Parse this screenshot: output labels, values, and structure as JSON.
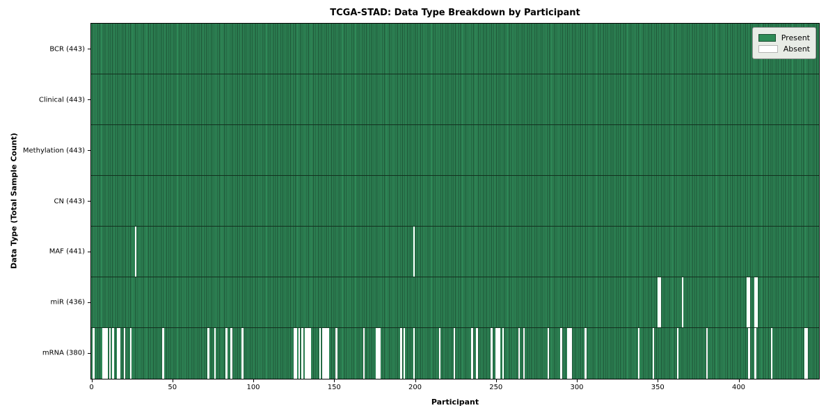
{
  "title": "TCGA-STAD: Data Type Breakdown by Participant",
  "axes": {
    "x_label": "Participant",
    "y_label": "Data Type (Total Sample Count)"
  },
  "legend": {
    "present_label": "Present",
    "absent_label": "Absent"
  },
  "colors": {
    "present": "#2e8b57",
    "present_edge": "#1c4f33",
    "absent": "#ffffff",
    "legend_bg": "#e8ece6"
  },
  "chart_data": {
    "type": "heatmap",
    "title": "TCGA-STAD: Data Type Breakdown by Participant",
    "xlabel": "Participant",
    "ylabel": "Data Type (Total Sample Count)",
    "x_ticks": [
      0,
      50,
      100,
      150,
      200,
      250,
      300,
      350,
      400
    ],
    "x_axis_range": [
      0,
      449
    ],
    "n_participants": 443,
    "grid": false,
    "legend_position": "upper right",
    "legend_entries": [
      "Present",
      "Absent"
    ],
    "rows": [
      {
        "label": "BCR (443)",
        "data_type": "BCR",
        "total_count": 443,
        "absent_participants": []
      },
      {
        "label": "Clinical (443)",
        "data_type": "Clinical",
        "total_count": 443,
        "absent_participants": []
      },
      {
        "label": "Methylation (443)",
        "data_type": "Methylation",
        "total_count": 443,
        "absent_participants": []
      },
      {
        "label": "CN (443)",
        "data_type": "CN",
        "total_count": 443,
        "absent_participants": []
      },
      {
        "label": "MAF (441)",
        "data_type": "MAF",
        "total_count": 441,
        "absent_participants": [
          27,
          199
        ]
      },
      {
        "label": "miR (436)",
        "data_type": "miR",
        "total_count": 436,
        "absent_participants": [
          350,
          351,
          365,
          405,
          406,
          410,
          411
        ]
      },
      {
        "label": "mRNA (380)",
        "data_type": "mRNA",
        "total_count": 380,
        "absent_participants": [
          1,
          7,
          8,
          9,
          11,
          13,
          16,
          17,
          20,
          24,
          44,
          72,
          76,
          83,
          86,
          93,
          125,
          126,
          128,
          130,
          132,
          133,
          134,
          135,
          141,
          143,
          144,
          145,
          146,
          151,
          168,
          176,
          177,
          178,
          191,
          193,
          199,
          215,
          224,
          235,
          238,
          247,
          250,
          251,
          252,
          254,
          264,
          267,
          282,
          290,
          294,
          295,
          296,
          305,
          338,
          347,
          362,
          380,
          406,
          410,
          420,
          441,
          442
        ]
      }
    ]
  }
}
